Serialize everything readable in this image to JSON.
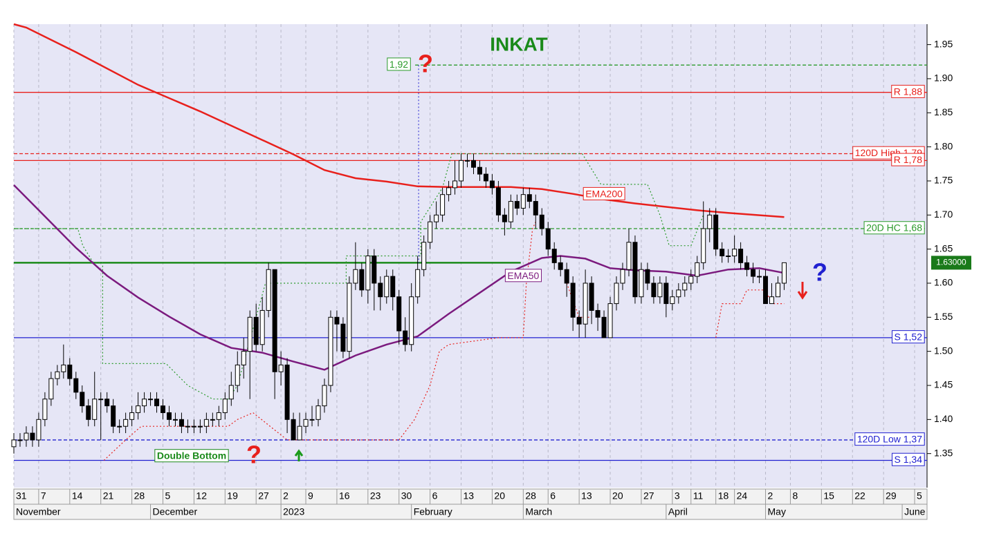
{
  "chart_data": {
    "type": "candlestick",
    "title": "INKAT",
    "x": [
      0,
      1,
      2,
      3,
      4,
      5,
      6,
      7,
      8,
      9,
      10,
      11,
      12,
      13,
      14,
      15,
      16,
      17,
      18,
      19,
      20,
      21,
      22,
      23,
      24,
      25,
      26,
      27,
      28,
      29,
      30,
      31,
      32,
      33,
      34,
      35,
      36,
      37,
      38,
      39,
      40,
      41,
      42,
      43,
      44,
      45,
      46,
      47,
      48,
      49,
      50,
      51,
      52,
      53,
      54,
      55,
      56,
      57,
      58,
      59,
      60,
      61,
      62,
      63,
      64,
      65,
      66,
      67,
      68,
      69,
      70,
      71,
      72,
      73,
      74,
      75,
      76,
      77,
      78,
      79,
      80,
      81,
      82,
      83,
      84,
      85,
      86,
      87,
      88,
      89,
      90,
      91,
      92,
      93,
      94,
      95,
      96,
      97,
      98,
      99,
      100,
      101,
      102,
      103,
      104,
      105,
      106,
      107,
      108,
      109,
      110,
      111,
      112,
      113,
      114,
      115,
      116,
      117,
      118,
      119,
      120,
      121,
      122,
      123,
      124
    ],
    "open": [
      1.36,
      1.37,
      1.37,
      1.38,
      1.37,
      1.4,
      1.43,
      1.46,
      1.47,
      1.48,
      1.46,
      1.44,
      1.42,
      1.4,
      1.43,
      1.43,
      1.42,
      1.39,
      1.39,
      1.4,
      1.41,
      1.42,
      1.43,
      1.43,
      1.42,
      1.41,
      1.4,
      1.4,
      1.39,
      1.39,
      1.39,
      1.39,
      1.4,
      1.4,
      1.41,
      1.43,
      1.45,
      1.48,
      1.5,
      1.55,
      1.51,
      1.56,
      1.62,
      1.47,
      1.48,
      1.4,
      1.37,
      1.39,
      1.4,
      1.4,
      1.42,
      1.45,
      1.55,
      1.54,
      1.5,
      1.6,
      1.62,
      1.59,
      1.64,
      1.6,
      1.58,
      1.61,
      1.58,
      1.53,
      1.51,
      1.58,
      1.62,
      1.66,
      1.69,
      1.7,
      1.73,
      1.74,
      1.75,
      1.78,
      1.78,
      1.77,
      1.76,
      1.75,
      1.74,
      1.7,
      1.69,
      1.72,
      1.71,
      1.73,
      1.72,
      1.7,
      1.68,
      1.65,
      1.63,
      1.62,
      1.6,
      1.55,
      1.54,
      1.6,
      1.56,
      1.55,
      1.52,
      1.57,
      1.6,
      1.62,
      1.66,
      1.58,
      1.62,
      1.6,
      1.58,
      1.6,
      1.57,
      1.58,
      1.59,
      1.6,
      1.61,
      1.63,
      1.68,
      1.7,
      1.65,
      1.64,
      1.64,
      1.65,
      1.63,
      1.62,
      1.61,
      1.61,
      1.57,
      1.58,
      1.6
    ],
    "high": [
      1.38,
      1.38,
      1.39,
      1.39,
      1.41,
      1.44,
      1.47,
      1.48,
      1.51,
      1.49,
      1.47,
      1.45,
      1.43,
      1.47,
      1.44,
      1.44,
      1.43,
      1.4,
      1.41,
      1.42,
      1.44,
      1.44,
      1.44,
      1.44,
      1.43,
      1.42,
      1.41,
      1.41,
      1.4,
      1.4,
      1.4,
      1.41,
      1.41,
      1.42,
      1.44,
      1.47,
      1.5,
      1.52,
      1.56,
      1.57,
      1.58,
      1.63,
      1.62,
      1.5,
      1.49,
      1.41,
      1.41,
      1.41,
      1.42,
      1.43,
      1.46,
      1.56,
      1.56,
      1.55,
      1.61,
      1.66,
      1.63,
      1.65,
      1.65,
      1.61,
      1.62,
      1.62,
      1.59,
      1.55,
      1.6,
      1.64,
      1.67,
      1.7,
      1.72,
      1.74,
      1.75,
      1.78,
      1.79,
      1.79,
      1.79,
      1.78,
      1.77,
      1.76,
      1.75,
      1.71,
      1.73,
      1.73,
      1.74,
      1.74,
      1.73,
      1.71,
      1.69,
      1.66,
      1.64,
      1.63,
      1.61,
      1.56,
      1.62,
      1.61,
      1.57,
      1.56,
      1.58,
      1.61,
      1.63,
      1.68,
      1.67,
      1.63,
      1.63,
      1.61,
      1.61,
      1.61,
      1.59,
      1.6,
      1.61,
      1.62,
      1.64,
      1.72,
      1.71,
      1.71,
      1.66,
      1.65,
      1.67,
      1.66,
      1.64,
      1.63,
      1.62,
      1.62,
      1.6,
      1.61,
      1.63
    ],
    "low": [
      1.35,
      1.36,
      1.36,
      1.36,
      1.36,
      1.39,
      1.42,
      1.45,
      1.46,
      1.45,
      1.43,
      1.41,
      1.39,
      1.39,
      1.37,
      1.41,
      1.38,
      1.38,
      1.38,
      1.39,
      1.4,
      1.41,
      1.42,
      1.41,
      1.4,
      1.39,
      1.39,
      1.38,
      1.38,
      1.38,
      1.38,
      1.38,
      1.39,
      1.39,
      1.4,
      1.42,
      1.44,
      1.46,
      1.43,
      1.5,
      1.5,
      1.55,
      1.43,
      1.45,
      1.38,
      1.37,
      1.37,
      1.38,
      1.39,
      1.39,
      1.41,
      1.44,
      1.5,
      1.49,
      1.49,
      1.59,
      1.58,
      1.57,
      1.56,
      1.56,
      1.57,
      1.56,
      1.51,
      1.5,
      1.5,
      1.57,
      1.61,
      1.65,
      1.68,
      1.69,
      1.72,
      1.73,
      1.74,
      1.77,
      1.76,
      1.75,
      1.74,
      1.73,
      1.69,
      1.67,
      1.68,
      1.7,
      1.7,
      1.71,
      1.68,
      1.67,
      1.64,
      1.62,
      1.61,
      1.58,
      1.53,
      1.52,
      1.52,
      1.54,
      1.53,
      1.52,
      1.52,
      1.56,
      1.59,
      1.61,
      1.57,
      1.57,
      1.59,
      1.57,
      1.57,
      1.55,
      1.56,
      1.57,
      1.58,
      1.59,
      1.6,
      1.62,
      1.66,
      1.64,
      1.63,
      1.63,
      1.63,
      1.62,
      1.61,
      1.6,
      1.6,
      1.57,
      1.57,
      1.58,
      1.59
    ],
    "close": [
      1.37,
      1.37,
      1.38,
      1.37,
      1.4,
      1.43,
      1.46,
      1.47,
      1.48,
      1.46,
      1.44,
      1.42,
      1.4,
      1.43,
      1.43,
      1.42,
      1.39,
      1.39,
      1.4,
      1.41,
      1.42,
      1.43,
      1.43,
      1.42,
      1.41,
      1.4,
      1.4,
      1.39,
      1.39,
      1.39,
      1.39,
      1.4,
      1.4,
      1.41,
      1.43,
      1.45,
      1.48,
      1.5,
      1.55,
      1.51,
      1.56,
      1.62,
      1.47,
      1.48,
      1.4,
      1.37,
      1.39,
      1.4,
      1.4,
      1.42,
      1.45,
      1.55,
      1.54,
      1.5,
      1.6,
      1.62,
      1.59,
      1.64,
      1.6,
      1.58,
      1.61,
      1.58,
      1.53,
      1.51,
      1.58,
      1.62,
      1.66,
      1.69,
      1.7,
      1.73,
      1.74,
      1.75,
      1.78,
      1.78,
      1.77,
      1.76,
      1.75,
      1.74,
      1.7,
      1.69,
      1.72,
      1.71,
      1.73,
      1.72,
      1.7,
      1.68,
      1.65,
      1.63,
      1.62,
      1.6,
      1.55,
      1.54,
      1.6,
      1.56,
      1.55,
      1.52,
      1.57,
      1.6,
      1.62,
      1.66,
      1.58,
      1.62,
      1.6,
      1.58,
      1.6,
      1.57,
      1.58,
      1.59,
      1.6,
      1.61,
      1.63,
      1.68,
      1.7,
      1.65,
      1.64,
      1.64,
      1.65,
      1.63,
      1.62,
      1.61,
      1.61,
      1.57,
      1.58,
      1.6,
      1.63
    ],
    "series": [
      {
        "name": "EMA200",
        "color": "#e8201c",
        "x": [
          0,
          2,
          10,
          20,
          30,
          40,
          45,
          50,
          55,
          60,
          65,
          70,
          80,
          85,
          90,
          95,
          100,
          105,
          110,
          115,
          124
        ],
        "values": [
          1.98,
          1.975,
          1.939,
          1.891,
          1.852,
          1.81,
          1.789,
          1.766,
          1.754,
          1.749,
          1.742,
          1.741,
          1.741,
          1.738,
          1.731,
          1.723,
          1.717,
          1.712,
          1.707,
          1.703,
          1.697
        ]
      },
      {
        "name": "EMA50",
        "color": "#7b1a7e",
        "x": [
          0,
          5,
          10,
          15,
          20,
          25,
          30,
          35,
          40,
          45,
          50,
          55,
          60,
          65,
          70,
          75,
          80,
          85,
          88,
          92,
          96,
          100,
          105,
          110,
          115,
          120,
          124
        ],
        "values": [
          1.744,
          1.698,
          1.652,
          1.611,
          1.579,
          1.551,
          1.525,
          1.505,
          1.498,
          1.485,
          1.473,
          1.494,
          1.51,
          1.522,
          1.555,
          1.586,
          1.617,
          1.637,
          1.64,
          1.636,
          1.622,
          1.619,
          1.617,
          1.611,
          1.62,
          1.622,
          1.615
        ]
      }
    ],
    "channels": [
      {
        "color": "#2a9a2a",
        "x": [
          0,
          10.3,
          11.1,
          12.8,
          14.3,
          14.3,
          24.5,
          28,
          32,
          34.5,
          36,
          37.5,
          39,
          40.5,
          53.5,
          53.5,
          65.5,
          65.5,
          69,
          70.5,
          91.5,
          94.5,
          102,
          104,
          105.5,
          109,
          111
        ],
        "values": [
          1.68,
          1.68,
          1.655,
          1.63,
          1.63,
          1.482,
          1.482,
          1.45,
          1.43,
          1.43,
          1.45,
          1.5,
          1.55,
          1.6,
          1.6,
          1.64,
          1.64,
          1.69,
          1.74,
          1.79,
          1.79,
          1.745,
          1.745,
          1.7,
          1.655,
          1.655,
          1.7
        ]
      },
      {
        "color": "#e8201c",
        "x": [
          14.5,
          18,
          20.5,
          34.5,
          36,
          38.5,
          44,
          62,
          64.5,
          67,
          68.5,
          70,
          78,
          82,
          82.5,
          83.5,
          84,
          null,
          89,
          91,
          93,
          null,
          113,
          114,
          117,
          118,
          121,
          122,
          124
        ],
        "values": [
          1.34,
          1.37,
          1.39,
          1.39,
          1.4,
          1.41,
          1.37,
          1.37,
          1.4,
          1.45,
          1.5,
          1.51,
          1.52,
          1.52,
          1.6,
          1.68,
          1.69,
          null,
          1.6,
          1.55,
          1.55,
          null,
          1.52,
          1.57,
          1.57,
          1.59,
          1.59,
          1.57,
          1.57
        ]
      }
    ],
    "levels": [
      {
        "label": "R 1,88",
        "value": 1.88,
        "color": "#e8201c",
        "style": "solid"
      },
      {
        "label": "120D High 1,79",
        "value": 1.79,
        "color": "#e8201c",
        "style": "dash"
      },
      {
        "label": "R 1,78",
        "value": 1.78,
        "color": "#e8201c",
        "style": "solid"
      },
      {
        "label": "20D HC 1,68",
        "value": 1.68,
        "color": "#2a9a2a",
        "style": "dash"
      },
      {
        "label": "S 1,52",
        "value": 1.52,
        "color": "#2020d0",
        "style": "solid"
      },
      {
        "label": "120D Low 1,37",
        "value": 1.37,
        "color": "#2020d0",
        "style": "dash"
      },
      {
        "label": "S 1,34",
        "value": 1.34,
        "color": "#2020d0",
        "style": "solid"
      },
      {
        "label": "1,92",
        "value": 1.92,
        "color": "#2a9a2a",
        "style": "dash",
        "from": 64.6
      },
      {
        "value": 1.63,
        "color": "#1a8a1a",
        "style": "thick",
        "to": 81.6
      }
    ],
    "last_price": {
      "value": 1.63,
      "label": "1.63000"
    },
    "annotations": [
      "Double Bottom",
      "?",
      "?",
      "?"
    ],
    "xlim": [
      0,
      147
    ],
    "xticks": [
      {
        "value": 0,
        "label": "31"
      },
      {
        "value": 4,
        "label": "7"
      },
      {
        "value": 9,
        "label": "14"
      },
      {
        "value": 14,
        "label": "21"
      },
      {
        "value": 19,
        "label": "28"
      },
      {
        "value": 24,
        "label": "5"
      },
      {
        "value": 29,
        "label": "12"
      },
      {
        "value": 34,
        "label": "19"
      },
      {
        "value": 39,
        "label": "27"
      },
      {
        "value": 43,
        "label": "2"
      },
      {
        "value": 47,
        "label": "9"
      },
      {
        "value": 52,
        "label": "16"
      },
      {
        "value": 57,
        "label": "23"
      },
      {
        "value": 62,
        "label": "30"
      },
      {
        "value": 67,
        "label": "6"
      },
      {
        "value": 72,
        "label": "13"
      },
      {
        "value": 77,
        "label": "20"
      },
      {
        "value": 82,
        "label": "28"
      },
      {
        "value": 86,
        "label": "6"
      },
      {
        "value": 91,
        "label": "13"
      },
      {
        "value": 96,
        "label": "20"
      },
      {
        "value": 101,
        "label": "27"
      },
      {
        "value": 106,
        "label": "3"
      },
      {
        "value": 109,
        "label": "11"
      },
      {
        "value": 113,
        "label": "18"
      },
      {
        "value": 116,
        "label": "24"
      },
      {
        "value": 121,
        "label": "2"
      },
      {
        "value": 125,
        "label": "8"
      },
      {
        "value": 130,
        "label": "15"
      },
      {
        "value": 135,
        "label": "22"
      },
      {
        "value": 140,
        "label": "29"
      },
      {
        "value": 145,
        "label": "5"
      }
    ],
    "month_ticks": [
      {
        "value": 0,
        "label": "November"
      },
      {
        "value": 22,
        "label": "December"
      },
      {
        "value": 43,
        "label": "2023"
      },
      {
        "value": 64,
        "label": "February"
      },
      {
        "value": 82,
        "label": "March"
      },
      {
        "value": 105,
        "label": "April"
      },
      {
        "value": 121,
        "label": "May"
      },
      {
        "value": 143,
        "label": "June"
      }
    ],
    "ylim": [
      1.3,
      1.98
    ],
    "yticks": [
      1.35,
      {
        "value": 1.4,
        "label": "1.40"
      },
      1.45,
      {
        "value": 1.5,
        "label": "1.50"
      },
      1.55,
      {
        "value": 1.6,
        "label": "1.60"
      },
      1.65,
      {
        "value": 1.7,
        "label": "1.70"
      },
      1.75,
      {
        "value": 1.8,
        "label": "1.80"
      },
      1.85,
      {
        "value": 1.9,
        "label": "1.90"
      },
      1.95
    ],
    "grid": true
  }
}
